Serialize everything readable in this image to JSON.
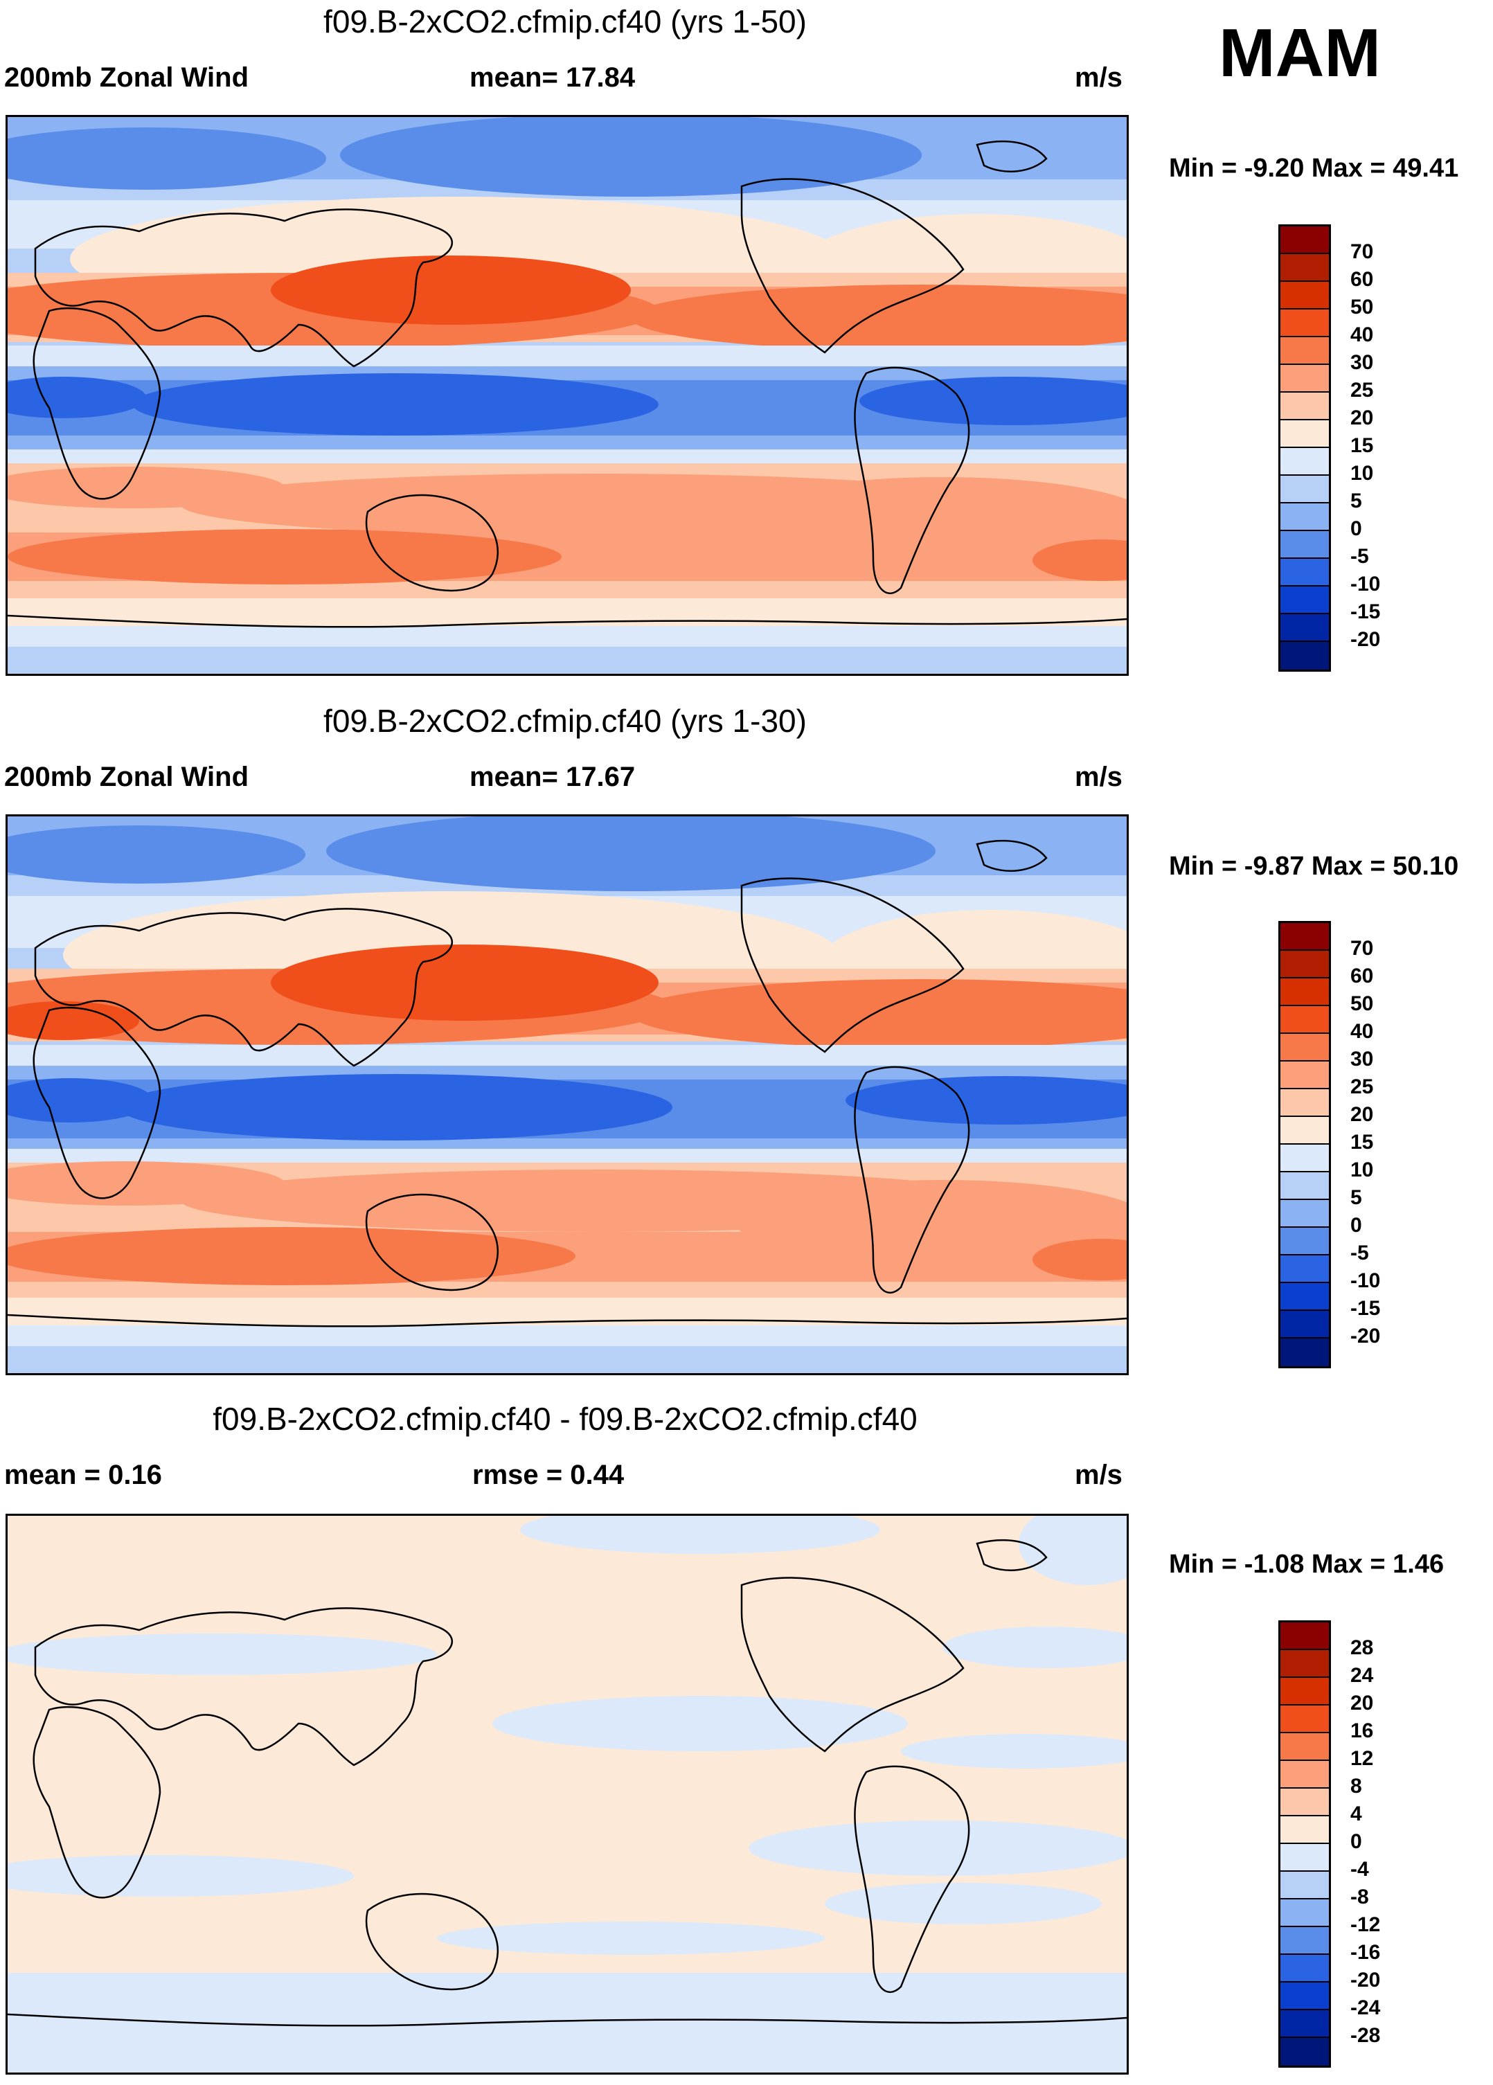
{
  "season": "MAM",
  "panels": [
    {
      "title": "f09.B-2xCO2.cfmip.cf40 (yrs 1-50)",
      "left_label": "200mb Zonal Wind",
      "center_label": "mean=  17.84",
      "units": "m/s",
      "minmax": "Min =  -9.20 Max =  49.41"
    },
    {
      "title": "f09.B-2xCO2.cfmip.cf40 (yrs 1-30)",
      "left_label": "200mb Zonal Wind",
      "center_label": "mean=  17.67",
      "units": "m/s",
      "minmax": "Min =  -9.87 Max =  50.10"
    },
    {
      "title": "f09.B-2xCO2.cfmip.cf40 - f09.B-2xCO2.cfmip.cf40",
      "left_label": "mean =   0.16",
      "center_label": "rmse =   0.44",
      "units": "m/s",
      "minmax": "Min =  -1.08 Max =   1.46"
    }
  ],
  "colorbars": [
    {
      "levels": [
        "70",
        "60",
        "50",
        "40",
        "30",
        "25",
        "20",
        "15",
        "10",
        "5",
        "0",
        "-5",
        "-10",
        "-15",
        "-20"
      ],
      "colors": [
        "#8b0000",
        "#b01e00",
        "#d73000",
        "#f04e1a",
        "#f7794a",
        "#fba07a",
        "#fdc8aa",
        "#fde9d8",
        "#dbe9fb",
        "#b6d0f7",
        "#8bb2f3",
        "#5a8de9",
        "#2b64e3",
        "#0a3fcf",
        "#0026a6",
        "#00177a"
      ]
    },
    {
      "levels": [
        "70",
        "60",
        "50",
        "40",
        "30",
        "25",
        "20",
        "15",
        "10",
        "5",
        "0",
        "-5",
        "-10",
        "-15",
        "-20"
      ],
      "colors": [
        "#8b0000",
        "#b01e00",
        "#d73000",
        "#f04e1a",
        "#f7794a",
        "#fba07a",
        "#fdc8aa",
        "#fde9d8",
        "#dbe9fb",
        "#b6d0f7",
        "#8bb2f3",
        "#5a8de9",
        "#2b64e3",
        "#0a3fcf",
        "#0026a6",
        "#00177a"
      ]
    },
    {
      "levels": [
        "28",
        "24",
        "20",
        "16",
        "12",
        "8",
        "4",
        "0",
        "-4",
        "-8",
        "-12",
        "-16",
        "-20",
        "-24",
        "-28"
      ],
      "colors": [
        "#8b0000",
        "#b01e00",
        "#d73000",
        "#f04e1a",
        "#f7794a",
        "#fba07a",
        "#fdc8aa",
        "#fde9d8",
        "#dbe9fb",
        "#b6d0f7",
        "#8bb2f3",
        "#5a8de9",
        "#2b64e3",
        "#0a3fcf",
        "#0026a6",
        "#00177a"
      ]
    }
  ]
}
